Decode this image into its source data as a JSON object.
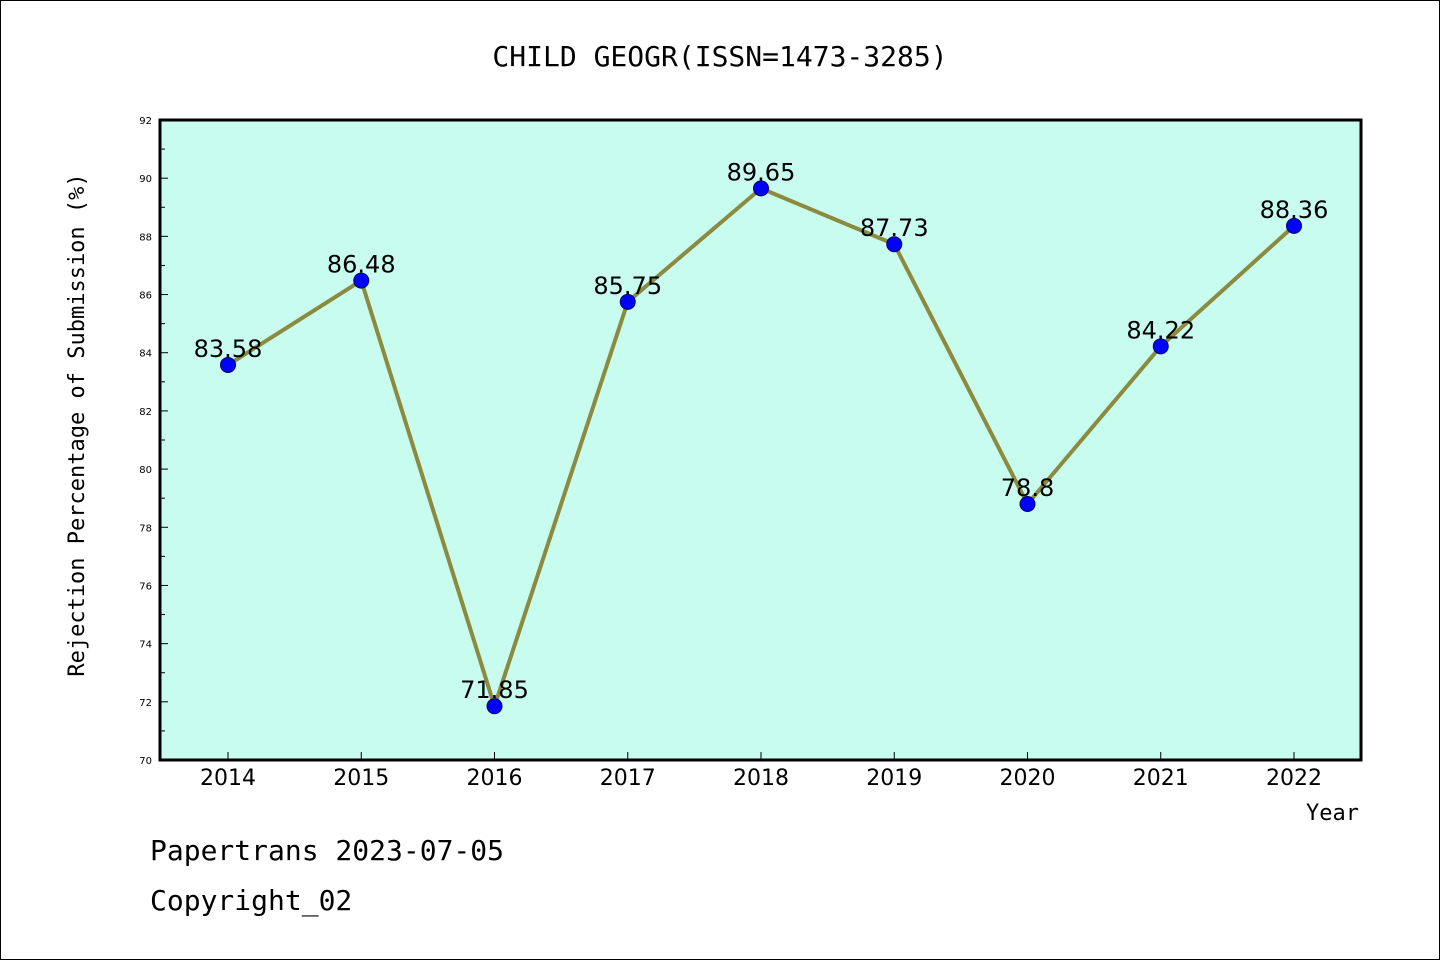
{
  "chart_data": {
    "type": "line",
    "title": "CHILD GEOGR(ISSN=1473-3285)",
    "xlabel": "Year",
    "ylabel": "Rejection Percentage of Submission (%)",
    "categories": [
      "2014",
      "2015",
      "2016",
      "2017",
      "2018",
      "2019",
      "2020",
      "2021",
      "2022"
    ],
    "values": [
      83.58,
      86.48,
      71.85,
      85.75,
      89.65,
      87.73,
      78.8,
      84.22,
      88.36
    ],
    "data_labels": [
      "83.58",
      "86.48",
      "71.85",
      "85.75",
      "89.65",
      "87.73",
      "78.8",
      "84.22",
      "88.36"
    ],
    "ylim": [
      70,
      92
    ],
    "yticks": [
      "70",
      "72",
      "74",
      "76",
      "78",
      "80",
      "82",
      "84",
      "86",
      "88",
      "90",
      "92"
    ],
    "grid": false,
    "colors": {
      "plot_background": "#c8fcee",
      "line": "#8b8a3e",
      "marker": "#0000ff"
    }
  },
  "footer": {
    "line1": "Papertrans 2023-07-05",
    "line2": "Copyright_02"
  }
}
